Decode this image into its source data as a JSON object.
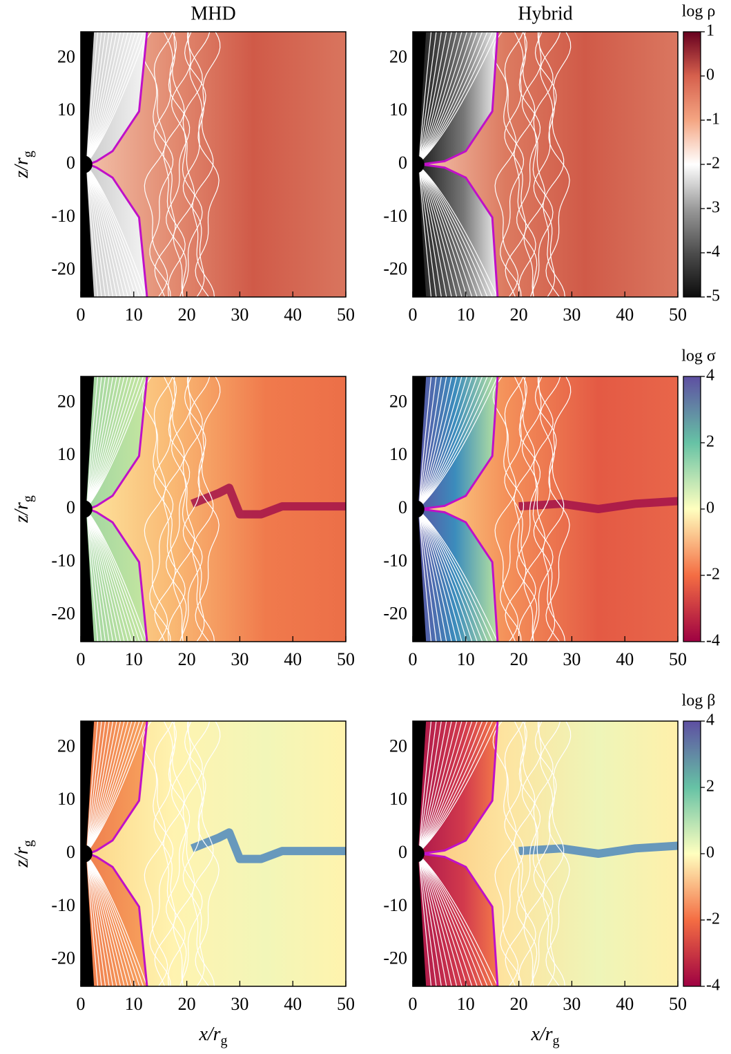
{
  "chart_data": [
    {
      "type": "heatmap",
      "title": "MHD",
      "xlim": [
        0,
        50
      ],
      "ylim": [
        -25,
        25
      ],
      "xticks": [
        0,
        10,
        20,
        30,
        40,
        50
      ],
      "yticks": [
        -20,
        -10,
        0,
        10,
        20
      ],
      "y_label": {
        "main": "z/r",
        "sub": "g"
      }
    },
    {
      "type": "heatmap",
      "title": "Hybrid",
      "xlim": [
        0,
        50
      ],
      "ylim": [
        -25,
        25
      ],
      "xticks": [
        0,
        10,
        20,
        30,
        40,
        50
      ],
      "yticks": [
        -20,
        -10,
        0,
        10,
        20
      ],
      "colorbar": {
        "label": "log ρ",
        "lim": [
          -5,
          1
        ],
        "ticks": [
          -5,
          -4,
          -3,
          -2,
          -1,
          0,
          1
        ],
        "colormap": [
          "#0d0d0d",
          "#4d4d4d",
          "#9a9a9a",
          "#ffffff",
          "#f4a582",
          "#d6604d",
          "#67001f"
        ]
      }
    },
    {
      "type": "heatmap",
      "xlim": [
        0,
        50
      ],
      "ylim": [
        -25,
        25
      ],
      "xticks": [
        0,
        10,
        20,
        30,
        40,
        50
      ],
      "yticks": [
        -20,
        -10,
        0,
        10,
        20
      ],
      "y_label": {
        "main": "z/r",
        "sub": "g"
      }
    },
    {
      "type": "heatmap",
      "xlim": [
        0,
        50
      ],
      "ylim": [
        -25,
        25
      ],
      "xticks": [
        0,
        10,
        20,
        30,
        40,
        50
      ],
      "yticks": [
        -20,
        -10,
        0,
        10,
        20
      ],
      "colorbar": {
        "label": "log σ",
        "lim": [
          -4,
          4
        ],
        "ticks": [
          -4,
          -2,
          0,
          2,
          4
        ],
        "colormap": [
          "#9e0142",
          "#f46d43",
          "#ffffbf",
          "#66c2a5",
          "#5e4fa2"
        ]
      }
    },
    {
      "type": "heatmap",
      "xlim": [
        0,
        50
      ],
      "ylim": [
        -25,
        25
      ],
      "xticks": [
        0,
        10,
        20,
        30,
        40,
        50
      ],
      "yticks": [
        -20,
        -10,
        0,
        10,
        20
      ],
      "y_label": {
        "main": "z/r",
        "sub": "g"
      },
      "x_label": {
        "main": "x/r",
        "sub": "g"
      }
    },
    {
      "type": "heatmap",
      "xlim": [
        0,
        50
      ],
      "ylim": [
        -25,
        25
      ],
      "xticks": [
        0,
        10,
        20,
        30,
        40,
        50
      ],
      "yticks": [
        -20,
        -10,
        0,
        10,
        20
      ],
      "x_label": {
        "main": "x/r",
        "sub": "g"
      },
      "colorbar": {
        "label": "log β",
        "lim": [
          -4,
          4
        ],
        "ticks": [
          -4,
          -2,
          0,
          2,
          4
        ],
        "colormap": [
          "#9e0142",
          "#f46d43",
          "#ffffbf",
          "#66c2a5",
          "#5e4fa2"
        ]
      }
    }
  ]
}
